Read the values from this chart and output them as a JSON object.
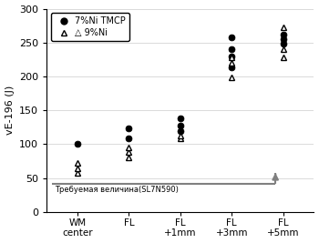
{
  "x_positions": [
    0,
    1,
    2,
    3,
    4
  ],
  "x_labels": [
    "WM\ncenter",
    "FL",
    "FL\n+1mm",
    "FL\n+3mm",
    "FL\n+5mm"
  ],
  "tmcp_data": {
    "WM center": [
      100
    ],
    "FL": [
      108,
      123
    ],
    "FL +1mm": [
      120,
      128,
      138
    ],
    "FL +3mm": [
      213,
      230,
      240,
      258
    ],
    "FL +5mm": [
      248,
      255,
      262
    ]
  },
  "ni9_data": {
    "WM center": [
      58,
      65,
      72
    ],
    "FL": [
      80,
      88,
      95
    ],
    "FL +1mm": [
      108,
      113
    ],
    "FL +3mm": [
      198,
      220,
      228
    ],
    "FL +5mm": [
      228,
      240,
      272
    ]
  },
  "required_level": 41,
  "required_label": "Требуемая величина(SL7N590)",
  "ylabel": "vE-196 (J)",
  "ylim": [
    0,
    300
  ],
  "yticks": [
    0,
    50,
    100,
    150,
    200,
    250,
    300
  ],
  "legend_tmcp": "7%Ni TMCP",
  "legend_9ni": "△9%Ni",
  "background_color": "#ffffff",
  "grid_color": "#cccccc",
  "marker_size": 5
}
